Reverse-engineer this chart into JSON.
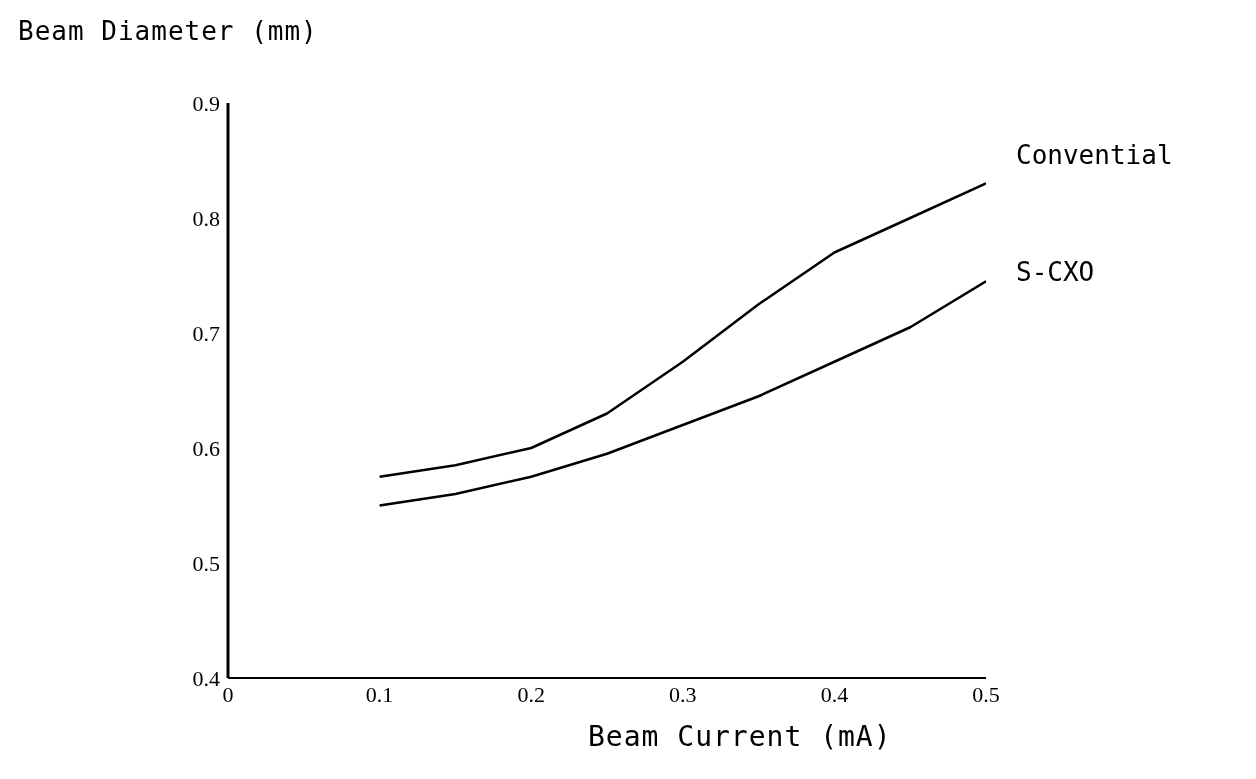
{
  "chart_data": {
    "type": "line",
    "xlabel": "Beam Current (mA)",
    "ylabel": "Beam Diameter (mm)",
    "x": [
      0.1,
      0.15,
      0.2,
      0.25,
      0.3,
      0.35,
      0.4,
      0.45,
      0.5
    ],
    "series": [
      {
        "name": "Convential",
        "color": "#000000",
        "values": [
          0.575,
          0.585,
          0.6,
          0.63,
          0.675,
          0.725,
          0.77,
          0.8,
          0.83
        ]
      },
      {
        "name": "S-CXO",
        "color": "#000000",
        "values": [
          0.55,
          0.56,
          0.575,
          0.595,
          0.62,
          0.645,
          0.675,
          0.705,
          0.745
        ]
      }
    ],
    "xlim": [
      0,
      0.5
    ],
    "xticks": [
      0,
      0.1,
      0.2,
      0.3,
      0.4,
      0.5
    ],
    "ylim": [
      0.4,
      0.9
    ],
    "yticks": [
      0.4,
      0.5,
      0.6,
      0.7,
      0.8,
      0.9
    ],
    "grid": false,
    "legend": false,
    "marker": "none",
    "line_style": "solid"
  }
}
